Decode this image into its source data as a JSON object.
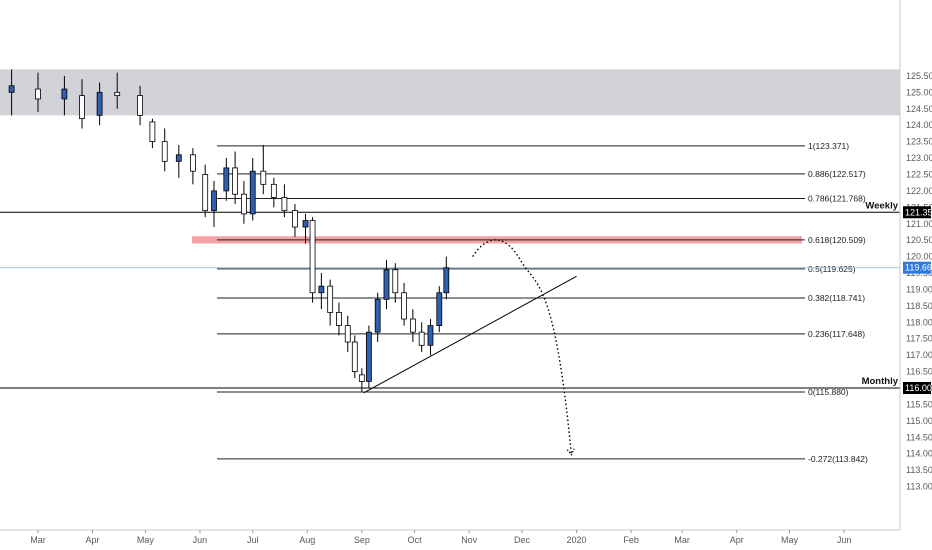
{
  "chart_data": {
    "type": "candlestick",
    "symbol_axis": {
      "y_ticks": [
        113.0,
        113.5,
        114.0,
        114.5,
        115.0,
        115.5,
        116.0,
        116.5,
        117.0,
        117.5,
        118.0,
        118.5,
        119.0,
        119.5,
        120.0,
        120.5,
        121.0,
        121.5,
        122.0,
        122.5,
        123.0,
        123.5,
        124.0,
        124.5,
        125.0,
        125.5
      ],
      "y_range": [
        112.7,
        125.7
      ],
      "x_ticks": [
        "Mar",
        "Apr",
        "May",
        "Jun",
        "Jul",
        "Aug",
        "Sep",
        "Oct",
        "Nov",
        "Dec",
        "2020",
        "Feb",
        "Mar",
        "Apr",
        "May",
        "Jun"
      ],
      "x_tick_days": [
        0,
        31,
        61,
        92,
        122,
        153,
        184,
        214,
        245,
        275,
        306,
        337,
        366,
        397,
        427,
        458
      ]
    },
    "fib_levels": [
      {
        "ratio": "1",
        "price": 123.371
      },
      {
        "ratio": "0.886",
        "price": 122.517
      },
      {
        "ratio": "0.786",
        "price": 121.768
      },
      {
        "ratio": "0.618",
        "price": 120.509
      },
      {
        "ratio": "0.5",
        "price": 119.625
      },
      {
        "ratio": "0.382",
        "price": 118.741
      },
      {
        "ratio": "0.236",
        "price": 117.648
      },
      {
        "ratio": "0",
        "price": 115.88
      },
      {
        "ratio": "-0.272",
        "price": 113.842
      }
    ],
    "horizontal_levels": [
      {
        "name": "Weekly",
        "price": 121.35
      },
      {
        "name": "Monthly",
        "price": 116.0
      }
    ],
    "current_price": 119.662,
    "resistance_zone": {
      "from": 120.4,
      "to": 120.62
    },
    "shaded_zone": {
      "from": 124.3,
      "to": 125.7
    },
    "trendline": {
      "start": {
        "day": 185,
        "price": 115.85
      },
      "end": {
        "day": 306,
        "price": 119.4
      }
    },
    "projection_path": [
      {
        "day": 247,
        "price": 120.0
      },
      {
        "day": 261,
        "price": 120.45
      },
      {
        "day": 274,
        "price": 119.9
      },
      {
        "day": 291,
        "price": 117.6
      },
      {
        "day": 303,
        "price": 114.0
      }
    ],
    "candles_sampled": [
      {
        "day": -15,
        "open": 125.0,
        "high": 125.7,
        "low": 124.3,
        "close": 125.2
      },
      {
        "day": 0,
        "open": 125.1,
        "high": 125.6,
        "low": 124.4,
        "close": 124.8
      },
      {
        "day": 15,
        "open": 124.8,
        "high": 125.5,
        "low": 124.3,
        "close": 125.1
      },
      {
        "day": 25,
        "open": 124.9,
        "high": 125.4,
        "low": 123.9,
        "close": 124.2
      },
      {
        "day": 35,
        "open": 124.3,
        "high": 125.3,
        "low": 124.0,
        "close": 125.0
      },
      {
        "day": 45,
        "open": 125.0,
        "high": 125.6,
        "low": 124.5,
        "close": 124.9
      },
      {
        "day": 58,
        "open": 124.9,
        "high": 125.2,
        "low": 124.0,
        "close": 124.3
      },
      {
        "day": 65,
        "open": 124.1,
        "high": 124.2,
        "low": 123.3,
        "close": 123.5
      },
      {
        "day": 72,
        "open": 123.5,
        "high": 123.9,
        "low": 122.6,
        "close": 122.9
      },
      {
        "day": 80,
        "open": 122.9,
        "high": 123.4,
        "low": 122.4,
        "close": 123.1
      },
      {
        "day": 88,
        "open": 123.1,
        "high": 123.3,
        "low": 122.2,
        "close": 122.6
      },
      {
        "day": 95,
        "open": 122.5,
        "high": 122.8,
        "low": 121.2,
        "close": 121.4
      },
      {
        "day": 100,
        "open": 121.4,
        "high": 122.3,
        "low": 120.9,
        "close": 122.0
      },
      {
        "day": 107,
        "open": 122.0,
        "high": 123.0,
        "low": 121.7,
        "close": 122.7
      },
      {
        "day": 112,
        "open": 122.7,
        "high": 123.2,
        "low": 121.6,
        "close": 121.9
      },
      {
        "day": 117,
        "open": 121.9,
        "high": 122.3,
        "low": 121.0,
        "close": 121.3
      },
      {
        "day": 122,
        "open": 121.3,
        "high": 123.0,
        "low": 121.1,
        "close": 122.6
      },
      {
        "day": 128,
        "open": 122.6,
        "high": 123.4,
        "low": 121.9,
        "close": 122.2
      },
      {
        "day": 134,
        "open": 122.2,
        "high": 122.4,
        "low": 121.5,
        "close": 121.8
      },
      {
        "day": 140,
        "open": 121.8,
        "high": 122.2,
        "low": 121.2,
        "close": 121.4
      },
      {
        "day": 146,
        "open": 121.4,
        "high": 121.6,
        "low": 120.6,
        "close": 120.9
      },
      {
        "day": 152,
        "open": 120.9,
        "high": 121.3,
        "low": 120.4,
        "close": 121.1
      },
      {
        "day": 156,
        "open": 121.1,
        "high": 121.2,
        "low": 118.6,
        "close": 118.9
      },
      {
        "day": 161,
        "open": 118.9,
        "high": 119.5,
        "low": 118.4,
        "close": 119.1
      },
      {
        "day": 166,
        "open": 119.1,
        "high": 119.3,
        "low": 117.9,
        "close": 118.3
      },
      {
        "day": 171,
        "open": 118.3,
        "high": 118.6,
        "low": 117.6,
        "close": 117.9
      },
      {
        "day": 176,
        "open": 117.9,
        "high": 118.2,
        "low": 117.1,
        "close": 117.4
      },
      {
        "day": 180,
        "open": 117.4,
        "high": 117.6,
        "low": 116.3,
        "close": 116.5
      },
      {
        "day": 184,
        "open": 116.4,
        "high": 116.6,
        "low": 115.88,
        "close": 116.2
      },
      {
        "day": 188,
        "open": 116.2,
        "high": 117.9,
        "low": 116.0,
        "close": 117.7
      },
      {
        "day": 193,
        "open": 117.7,
        "high": 118.9,
        "low": 117.4,
        "close": 118.7
      },
      {
        "day": 198,
        "open": 118.7,
        "high": 119.9,
        "low": 118.4,
        "close": 119.6
      },
      {
        "day": 203,
        "open": 119.6,
        "high": 119.8,
        "low": 118.6,
        "close": 118.9
      },
      {
        "day": 208,
        "open": 118.9,
        "high": 119.2,
        "low": 117.9,
        "close": 118.1
      },
      {
        "day": 213,
        "open": 118.1,
        "high": 118.4,
        "low": 117.4,
        "close": 117.7
      },
      {
        "day": 218,
        "open": 117.7,
        "high": 118.0,
        "low": 117.1,
        "close": 117.3
      },
      {
        "day": 223,
        "open": 117.3,
        "high": 118.1,
        "low": 117.0,
        "close": 117.9
      },
      {
        "day": 228,
        "open": 117.9,
        "high": 119.1,
        "low": 117.7,
        "close": 118.9
      },
      {
        "day": 232,
        "open": 118.9,
        "high": 120.0,
        "low": 118.7,
        "close": 119.66
      }
    ]
  },
  "labels": {
    "fib": [
      "1(123.371)",
      "0.886(122.517)",
      "0.786(121.768)",
      "0.618(120.509)",
      "0.5(119.625)",
      "0.382(118.741)",
      "0.236(117.648)",
      "0(115.880)",
      "-0.272(113.842)"
    ],
    "y_ticks": [
      "113.000",
      "113.500",
      "114.000",
      "114.500",
      "115.000",
      "115.500",
      "116.000",
      "116.500",
      "117.000",
      "117.500",
      "118.000",
      "118.500",
      "119.000",
      "119.500",
      "120.000",
      "120.500",
      "121.000",
      "121.500",
      "122.000",
      "122.500",
      "123.000",
      "123.500",
      "124.000",
      "124.500",
      "125.000",
      "125.500"
    ],
    "weekly_name": "Weekly",
    "weekly_badge": "121.350",
    "monthly_name": "Monthly",
    "monthly_badge": "116.000",
    "current_badge": "119.662"
  },
  "colors": {
    "bull_candle": "#2f5fb0",
    "bear_candle": "#ffffff",
    "candle_outline": "#000000",
    "shaded_zone": "#d2d3d8",
    "resistance_zone": "#f4a3a3",
    "current_price_line": "#9ec3ea",
    "current_badge": "#2d7be0",
    "level_badge": "#000000"
  }
}
